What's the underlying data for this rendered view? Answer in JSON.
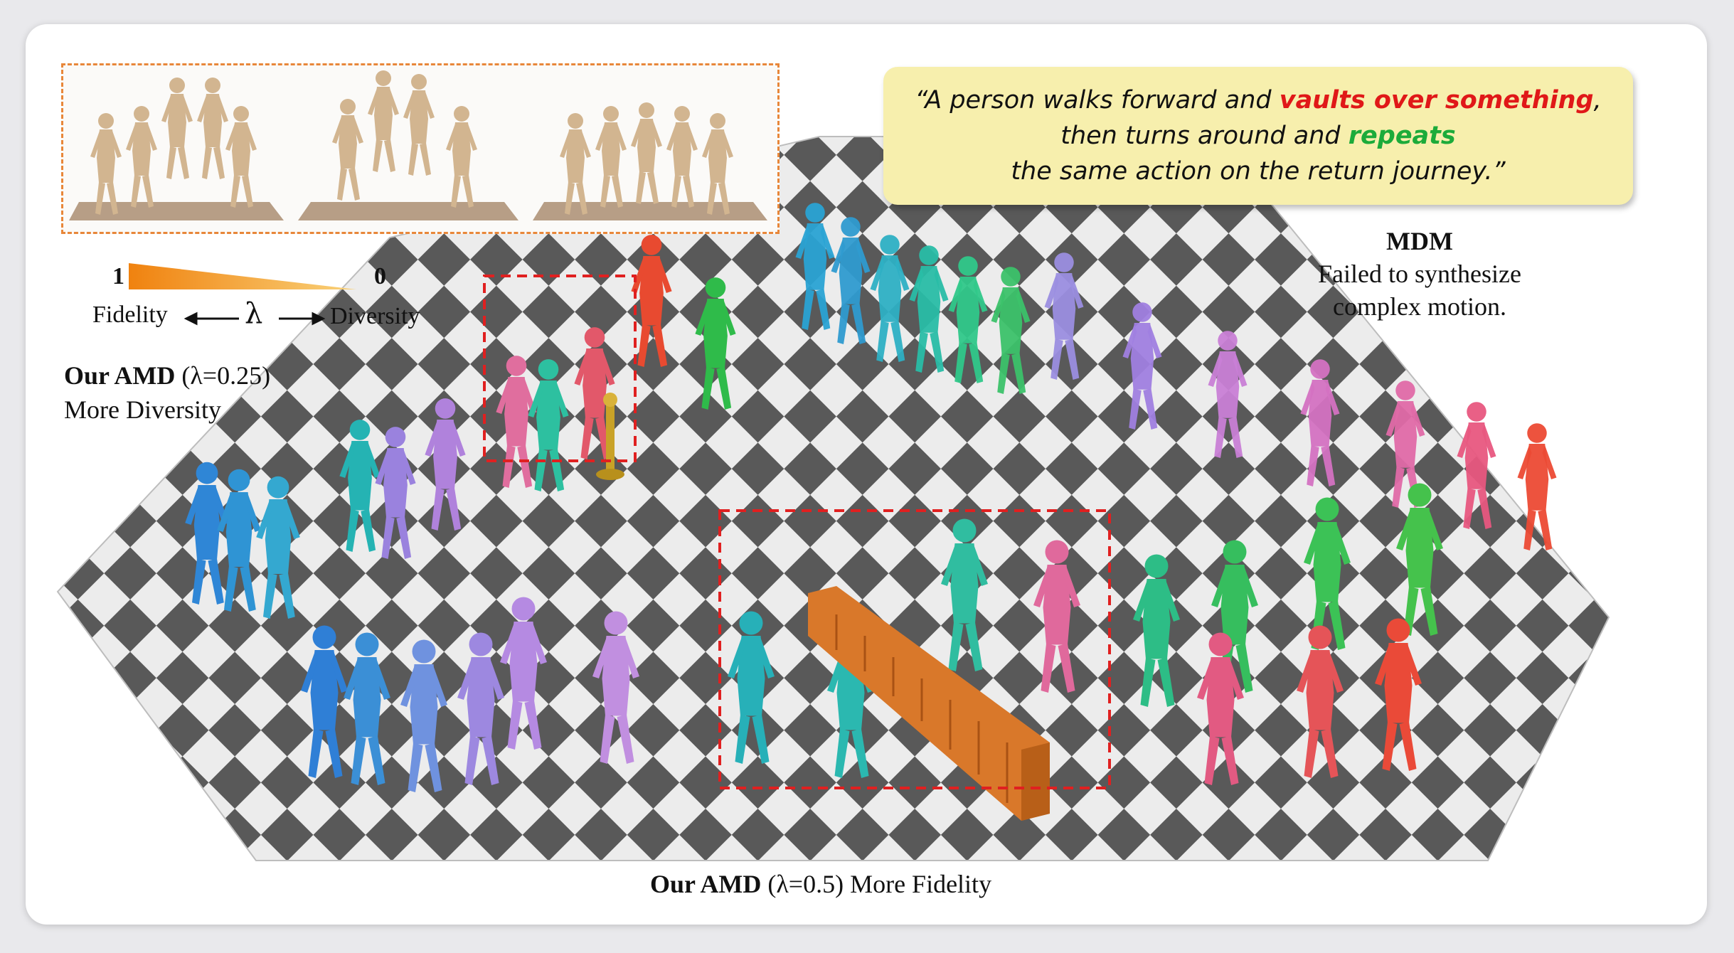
{
  "quote": {
    "open": "“A person walks forward and ",
    "highlight1": "vaults over something",
    "mid1": ",",
    "line2a": "then turns around and ",
    "highlight2": "repeats",
    "line3": "the same action on the return journey.”"
  },
  "mdm": {
    "title": "MDM",
    "line1": "Failed to synthesize",
    "line2": "complex motion."
  },
  "scale": {
    "left_value": "1",
    "right_value": "0",
    "left_label": "Fidelity",
    "symbol": "λ",
    "right_label": "Diversity"
  },
  "amd_diversity": {
    "name": "Our AMD",
    "param": "(λ=0.25)",
    "desc": "More Diversity"
  },
  "amd_fidelity": {
    "name": "Our AMD",
    "param": "(λ=0.5)",
    "desc": "More Fidelity"
  },
  "colors": {
    "accent_orange": "#f0820f",
    "highlight_red": "#e01818",
    "highlight_green": "#1cab3a",
    "dashed_box": "#e02020",
    "quote_bg": "#f7efad"
  },
  "icons": [
    "human-figure-icon",
    "stanchion-icon",
    "fence-icon"
  ]
}
